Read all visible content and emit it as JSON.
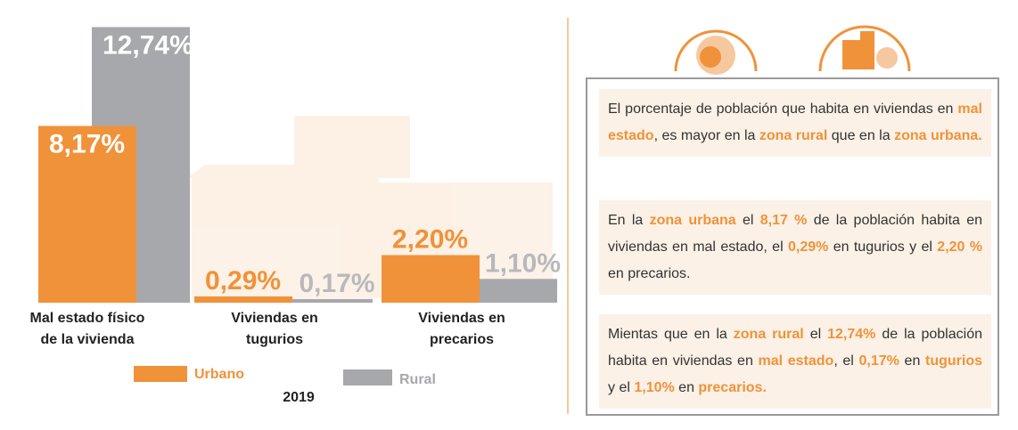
{
  "chart_data": {
    "type": "bar",
    "categories": [
      "Mal estado físico de la vivienda",
      "Viviendas en tugurios",
      "Viviendas en precarios"
    ],
    "series": [
      {
        "name": "Urbano",
        "color": "#f0923a",
        "values": [
          8.17,
          0.29,
          2.2
        ],
        "value_labels": [
          "8,17%",
          "0,29%",
          "2,20%"
        ]
      },
      {
        "name": "Rural",
        "color": "#a7a8ab",
        "values": [
          12.74,
          0.17,
          1.1
        ],
        "value_labels": [
          "12,74%",
          "0,17%",
          "1,10%"
        ]
      }
    ],
    "xlabel": "2019"
  },
  "text_panel": {
    "paragraphs": [
      [
        {
          "text": "El porcentaje de población que habita en viviendas en "
        },
        {
          "text": "mal estado",
          "bold": true
        },
        {
          "text": ", es mayor en la "
        },
        {
          "text": "zona rural",
          "bold": true
        },
        {
          "text": " que en la "
        },
        {
          "text": "zona urbana.",
          "bold": true
        }
      ],
      [
        {
          "text": "En la "
        },
        {
          "text": "zona urbana",
          "bold": true
        },
        {
          "text": " el "
        },
        {
          "text": "8,17 %",
          "bold": true
        },
        {
          "text": " de la población habita en viviendas en mal estado, el "
        },
        {
          "text": "0,29%",
          "bold": true
        },
        {
          "text": " en tugurios y el "
        },
        {
          "text": "2,20 %",
          "bold": true
        },
        {
          "text": " en precarios."
        }
      ],
      [
        {
          "text": "Mientas que en la "
        },
        {
          "text": "zona rural",
          "bold": true
        },
        {
          "text": " el "
        },
        {
          "text": "12,74%",
          "bold": true
        },
        {
          "text": " de la población habita en viviendas en "
        },
        {
          "text": "mal estado",
          "bold": true
        },
        {
          "text": ", el "
        },
        {
          "text": "0,17%",
          "bold": true
        },
        {
          "text": " en "
        },
        {
          "text": "tugurios",
          "bold": true
        },
        {
          "text": " y el "
        },
        {
          "text": "1,10%",
          "bold": true
        },
        {
          "text": " en "
        },
        {
          "text": "precarios.",
          "bold": true
        }
      ]
    ]
  }
}
